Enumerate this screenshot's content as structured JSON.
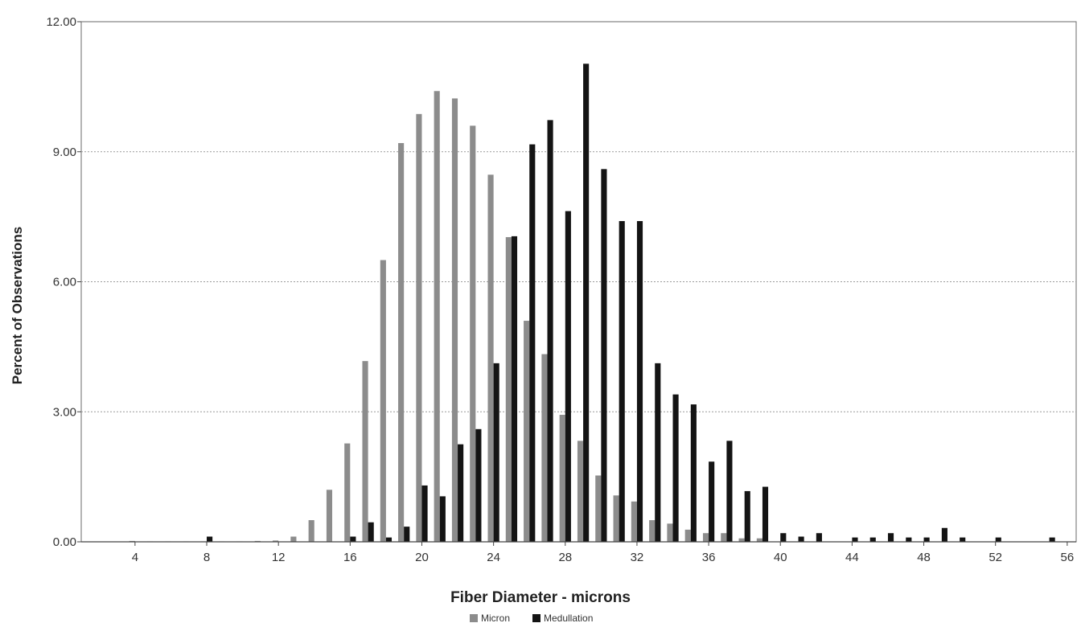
{
  "chart_data": {
    "type": "bar",
    "xlabel": "Fiber Diameter - microns",
    "ylabel": "Percent of Observations",
    "xlim": [
      1,
      56.5
    ],
    "ylim": [
      0,
      12
    ],
    "yticks": [
      "0.00",
      "3.00",
      "6.00",
      "9.00",
      "12.00"
    ],
    "xticks": [
      "4",
      "8",
      "12",
      "16",
      "20",
      "24",
      "28",
      "32",
      "36",
      "40",
      "44",
      "48",
      "52",
      "56"
    ],
    "grid": "horizontal-dotted",
    "legend_position": "bottom-center",
    "x": [
      4,
      5,
      6,
      7,
      8,
      9,
      10,
      11,
      12,
      13,
      14,
      15,
      16,
      17,
      18,
      19,
      20,
      21,
      22,
      23,
      24,
      25,
      26,
      27,
      28,
      29,
      30,
      31,
      32,
      33,
      34,
      35,
      36,
      37,
      38,
      39,
      40,
      41,
      42,
      43,
      44,
      45,
      46,
      47,
      48,
      49,
      50,
      51,
      52,
      53,
      54,
      55
    ],
    "series": [
      {
        "name": "Micron",
        "color": "#8c8c8c",
        "values": [
          0.02,
          0.01,
          0.01,
          0.01,
          0.01,
          0.01,
          0.01,
          0.02,
          0.03,
          0.12,
          0.5,
          1.2,
          2.27,
          4.17,
          6.5,
          9.2,
          9.87,
          10.4,
          10.23,
          9.6,
          8.47,
          7.03,
          5.1,
          4.33,
          2.93,
          2.33,
          1.53,
          1.07,
          0.93,
          0.5,
          0.42,
          0.28,
          0.2,
          0.2,
          0.08,
          0.08,
          0,
          0,
          0,
          0,
          0,
          0,
          0,
          0,
          0,
          0,
          0,
          0,
          0,
          0,
          0,
          0
        ]
      },
      {
        "name": "Medullation",
        "color": "#141414",
        "values": [
          0,
          0,
          0,
          0,
          0.12,
          0,
          0,
          0,
          0,
          0,
          0,
          0,
          0.12,
          0.45,
          0.1,
          0.35,
          1.3,
          1.05,
          2.25,
          2.6,
          4.12,
          7.05,
          9.17,
          9.73,
          7.63,
          11.03,
          8.6,
          7.4,
          7.4,
          4.12,
          3.4,
          3.17,
          1.85,
          2.33,
          1.17,
          1.27,
          0.2,
          0.12,
          0.2,
          0,
          0.1,
          0.1,
          0.2,
          0.1,
          0.1,
          0.32,
          0.1,
          0,
          0.1,
          0,
          0,
          0.1
        ]
      }
    ]
  }
}
